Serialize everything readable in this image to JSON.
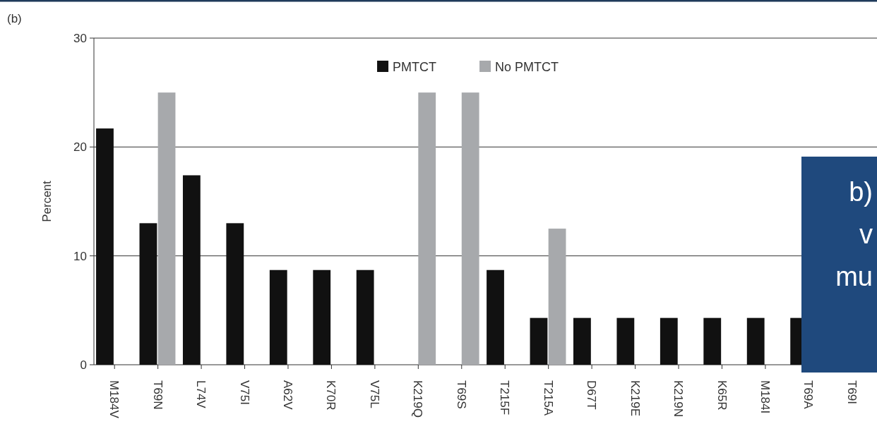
{
  "chart_data": {
    "type": "bar",
    "title": "(b)",
    "ylabel": "Percent",
    "categories": [
      "M184V",
      "T69N",
      "L74V",
      "V75I",
      "A62V",
      "K70R",
      "V75L",
      "K219Q",
      "T69S",
      "T215F",
      "T215A",
      "D67T",
      "K219E",
      "K219N",
      "K65R",
      "M184I",
      "T69A",
      "T69I"
    ],
    "series": [
      {
        "name": "PMTCT",
        "color": "#111111",
        "values": [
          21.7,
          13,
          17.4,
          13,
          8.7,
          8.7,
          8.7,
          0,
          0,
          8.7,
          4.3,
          4.3,
          4.3,
          4.3,
          4.3,
          4.3,
          4.3,
          null
        ]
      },
      {
        "name": "No PMTCT",
        "color": "#a7a9ac",
        "values": [
          0,
          25,
          0,
          0,
          0,
          0,
          0,
          25,
          25,
          0,
          12.5,
          0,
          0,
          0,
          0,
          0,
          null,
          null
        ]
      }
    ],
    "ylim": [
      0,
      30
    ],
    "yticks": [
      0,
      10,
      20,
      30
    ],
    "grid": "y",
    "legend": "top",
    "annotations": [
      "b)",
      "v",
      "mu"
    ]
  }
}
